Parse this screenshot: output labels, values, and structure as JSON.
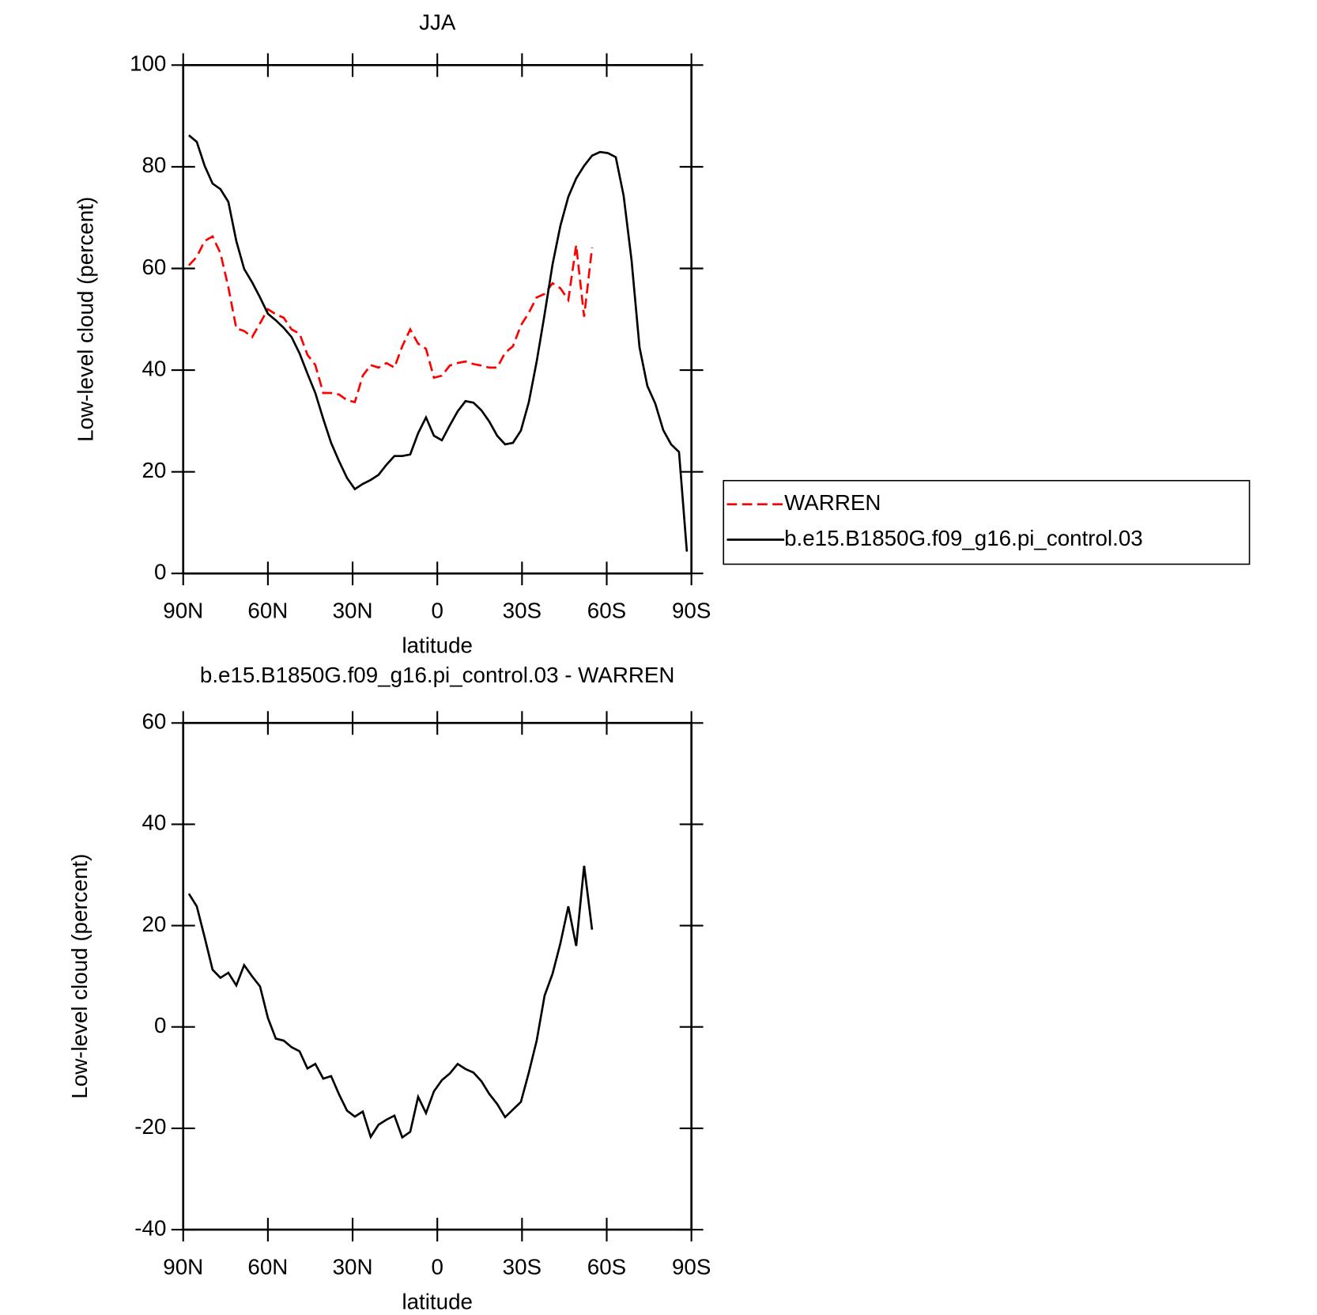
{
  "chart_data": [
    {
      "type": "line",
      "title": "JJA",
      "xlabel": "latitude",
      "ylabel": "Low-level cloud (percent)",
      "x": [
        88,
        85.2,
        82.4,
        79.6,
        76.8,
        74,
        71.2,
        68.4,
        65.6,
        62.8,
        60,
        57.2,
        54.4,
        51.6,
        48.8,
        46,
        43.2,
        40.4,
        37.6,
        34.8,
        32,
        29.2,
        26.4,
        23.6,
        20.8,
        18,
        15.2,
        12.4,
        9.6,
        6.8,
        4,
        1.2,
        -1.6,
        -4.4,
        -7.2,
        -10,
        -12.8,
        -15.6,
        -18.4,
        -21.2,
        -24,
        -26.8,
        -29.6,
        -32.4,
        -35.2,
        -38,
        -40.8,
        -43.6,
        -46.4,
        -49.2,
        -52,
        -54.8,
        -57.6,
        -60.4,
        -63.2,
        -66,
        -68.8,
        -71.6,
        -74.4,
        -77.2,
        -80,
        -82.8,
        -85.6,
        -88.4
      ],
      "series": [
        {
          "name": "WARREN",
          "color": "#ff0000",
          "line_style": "dashed",
          "values": [
            60.6,
            62.3,
            65.4,
            66.3,
            63.0,
            56.3,
            48.2,
            47.7,
            46.5,
            49.2,
            52.0,
            51.0,
            50.3,
            48.0,
            47.2,
            43.0,
            41.0,
            35.5,
            35.5,
            35.2,
            34.1,
            33.7,
            38.9,
            41.0,
            40.5,
            41.4,
            40.5,
            44.7,
            48.0,
            45.2,
            44.2,
            38.5,
            38.9,
            40.9,
            41.4,
            41.7,
            41.2,
            40.9,
            40.5,
            40.5,
            43.4,
            44.7,
            48.8,
            51.3,
            54.3,
            55.0,
            57.1,
            56.1,
            53.8,
            64.6,
            50.5,
            64.1,
            null,
            null,
            null,
            null,
            null,
            null,
            null,
            null,
            null,
            null,
            null,
            null
          ]
        },
        {
          "name": "b.e15.B1850G.f09_g16.pi_control.03",
          "color": "#000000",
          "line_style": "solid",
          "values": [
            86.2,
            84.9,
            80.2,
            76.7,
            75.6,
            73.1,
            65.4,
            59.9,
            57.3,
            54.3,
            51.1,
            49.8,
            48.3,
            46.5,
            43.3,
            39.3,
            35.5,
            30.4,
            25.7,
            22.1,
            18.8,
            16.6,
            17.6,
            18.4,
            19.4,
            21.4,
            23.1,
            23.1,
            23.4,
            27.6,
            30.7,
            27.1,
            26.2,
            29.1,
            31.9,
            33.9,
            33.6,
            32.1,
            29.9,
            27.1,
            25.4,
            25.7,
            28.1,
            33.7,
            41.7,
            51.0,
            60.8,
            68.4,
            74.1,
            77.7,
            80.2,
            82.2,
            82.9,
            82.7,
            81.9,
            74.3,
            61.6,
            44.5,
            36.9,
            33.4,
            28.2,
            25.4,
            23.9,
            4.3
          ]
        }
      ],
      "xlim": [
        90,
        -90
      ],
      "ylim": [
        0,
        100
      ],
      "xticks": [
        {
          "value": 90,
          "label": "90N"
        },
        {
          "value": 60,
          "label": "60N"
        },
        {
          "value": 30,
          "label": "30N"
        },
        0,
        {
          "value": -30,
          "label": "30S"
        },
        {
          "value": -60,
          "label": "60S"
        },
        {
          "value": -90,
          "label": "90S"
        }
      ],
      "yticks": [
        0,
        20,
        40,
        60,
        80,
        100
      ],
      "legend": "right"
    },
    {
      "type": "line",
      "title": "b.e15.B1850G.f09_g16.pi_control.03 - WARREN",
      "xlabel": "latitude",
      "ylabel": "Low-level cloud (percent)",
      "x": [
        88,
        85.2,
        82.4,
        79.6,
        76.8,
        74,
        71.2,
        68.4,
        65.6,
        62.8,
        60,
        57.2,
        54.4,
        51.6,
        48.8,
        46,
        43.2,
        40.4,
        37.6,
        34.8,
        32,
        29.2,
        26.4,
        23.6,
        20.8,
        18,
        15.2,
        12.4,
        9.6,
        6.8,
        4,
        1.2,
        -1.6,
        -4.4,
        -7.2,
        -10,
        -12.8,
        -15.6,
        -18.4,
        -21.2,
        -24,
        -26.8,
        -29.6,
        -32.4,
        -35.2,
        -38,
        -40.8,
        -43.6,
        -46.4,
        -49.2,
        -52,
        -54.8,
        -57.6,
        -60.4,
        -63.2,
        -66,
        -68.8,
        -71.6,
        -74.4,
        -77.2,
        -80,
        -82.8,
        -85.6,
        -88.4
      ],
      "values": [
        26.3,
        23.8,
        17.7,
        11.3,
        9.7,
        10.7,
        8.2,
        12.2,
        10.0,
        8.0,
        1.8,
        -2.3,
        -2.7,
        -4.0,
        -4.8,
        -8.2,
        -7.3,
        -10.2,
        -9.7,
        -13.3,
        -16.5,
        -17.7,
        -16.7,
        -21.7,
        -19.3,
        -18.3,
        -17.5,
        -21.8,
        -20.7,
        -13.8,
        -17.0,
        -12.7,
        -10.5,
        -9.2,
        -7.3,
        -8.3,
        -9.0,
        -10.7,
        -13.2,
        -15.2,
        -17.8,
        -16.3,
        -14.8,
        -9.0,
        -2.7,
        6.2,
        10.5,
        16.5,
        23.8,
        16.0,
        31.8,
        19.2,
        null,
        null,
        null,
        null,
        null,
        null,
        null,
        null,
        null,
        null,
        null,
        null
      ],
      "color": "#000000",
      "xlim": [
        90,
        -90
      ],
      "ylim": [
        -40,
        60
      ],
      "xticks": [
        {
          "value": 90,
          "label": "90N"
        },
        {
          "value": 60,
          "label": "60N"
        },
        {
          "value": 30,
          "label": "30N"
        },
        0,
        {
          "value": -30,
          "label": "30S"
        },
        {
          "value": -60,
          "label": "60S"
        },
        {
          "value": -90,
          "label": "90S"
        }
      ],
      "yticks": [
        -40,
        -20,
        0,
        20,
        40,
        60
      ]
    }
  ]
}
